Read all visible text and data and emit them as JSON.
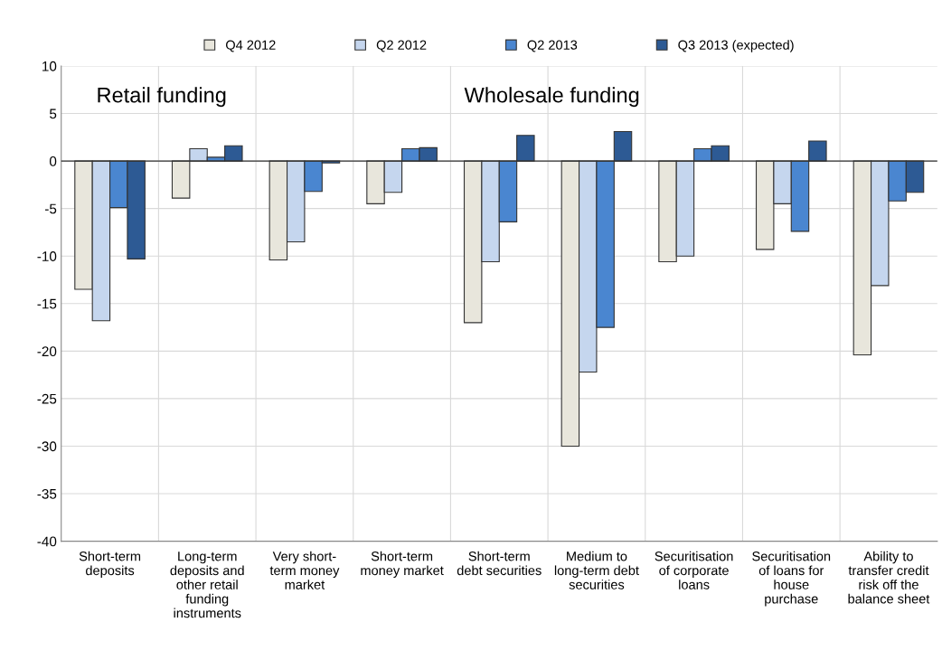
{
  "chart_data": {
    "type": "bar",
    "categories": [
      "Short-term\ndeposits",
      "Long-term\ndeposits and\nother retail\nfunding\ninstruments",
      "Very short-\nterm money\nmarket",
      "Short-term\nmoney market",
      "Short-term\ndebt securities",
      "Medium to\nlong-term debt\nsecurities",
      "Securitisation\nof corporate\nloans",
      "Securitisation\nof loans for\nhouse\npurchase",
      "Ability to\ntransfer credit\nrisk off the\nbalance sheet"
    ],
    "series": [
      {
        "name": "Q4 2012",
        "color": "#e8e6dc",
        "values": [
          -13.5,
          -3.9,
          -10.4,
          -4.5,
          -17,
          -30,
          -10.6,
          -9.3,
          -20.4
        ]
      },
      {
        "name": "Q2 2012",
        "color": "#c5d6ee",
        "values": [
          -16.8,
          1.3,
          -8.5,
          -3.3,
          -10.6,
          -22.2,
          -10,
          -4.5,
          -13.1
        ]
      },
      {
        "name": "Q2 2013",
        "color": "#4a86d0",
        "values": [
          -4.9,
          0.4,
          -3.2,
          1.3,
          -6.4,
          -17.5,
          1.3,
          -7.4,
          -4.2
        ]
      },
      {
        "name": "Q3 2013 (expected)",
        "color": "#2d5a94",
        "values": [
          -10.3,
          1.6,
          -0.2,
          1.4,
          2.7,
          3.1,
          1.6,
          2.1,
          -3.3
        ]
      }
    ],
    "ylim": [
      -40,
      10
    ],
    "yticks": [
      -40,
      -35,
      -30,
      -25,
      -20,
      -15,
      -10,
      -5,
      0,
      5,
      10
    ],
    "annotations": [
      "Retail funding",
      "Wholesale funding"
    ],
    "grid": true,
    "legend": "top"
  }
}
